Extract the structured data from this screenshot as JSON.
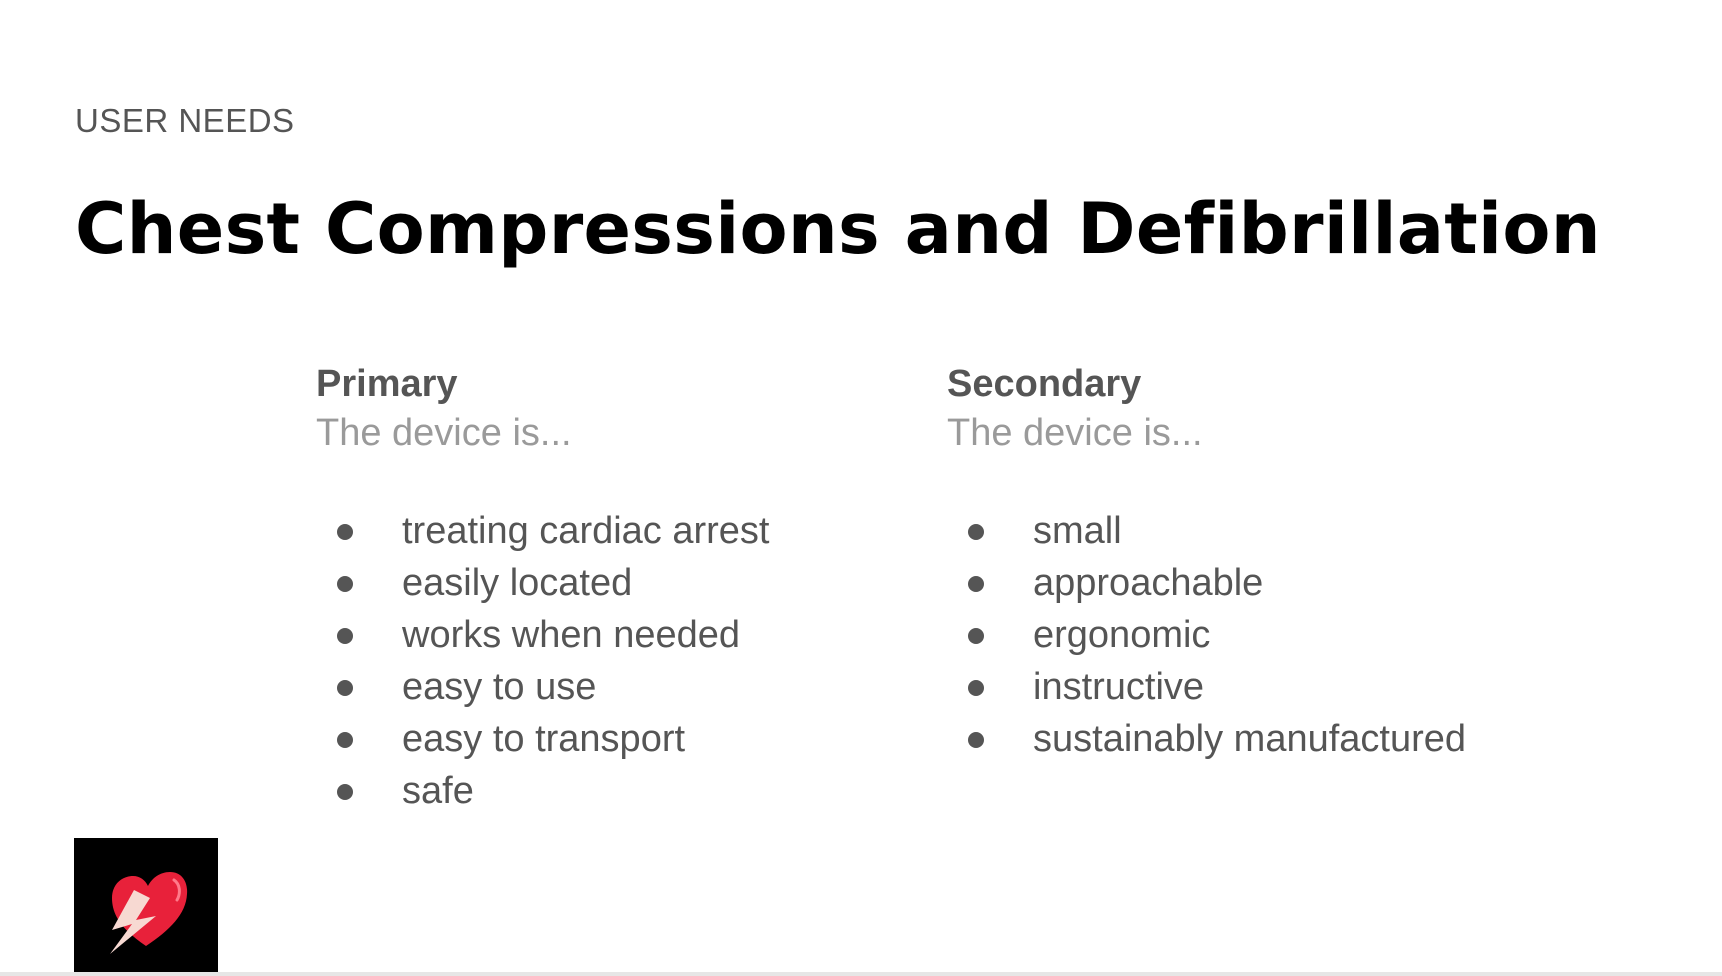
{
  "slide": {
    "kicker": "USER NEEDS",
    "title": "Chest Compressions and Defibrillation"
  },
  "columns": [
    {
      "heading": "Primary",
      "subheading": "The device is...",
      "items": [
        "treating cardiac arrest",
        "easily located",
        "works when needed",
        "easy to use",
        "easy to transport",
        "safe"
      ]
    },
    {
      "heading": "Secondary",
      "subheading": "The device is...",
      "items": [
        "small",
        "approachable",
        "ergonomic",
        "instructive",
        "sustainably manufactured"
      ]
    }
  ],
  "logo": {
    "icon": "heart-lightning-icon",
    "colors": {
      "background": "#000000",
      "heart": "#e8213a",
      "bolt": "#f7d9d2"
    }
  }
}
